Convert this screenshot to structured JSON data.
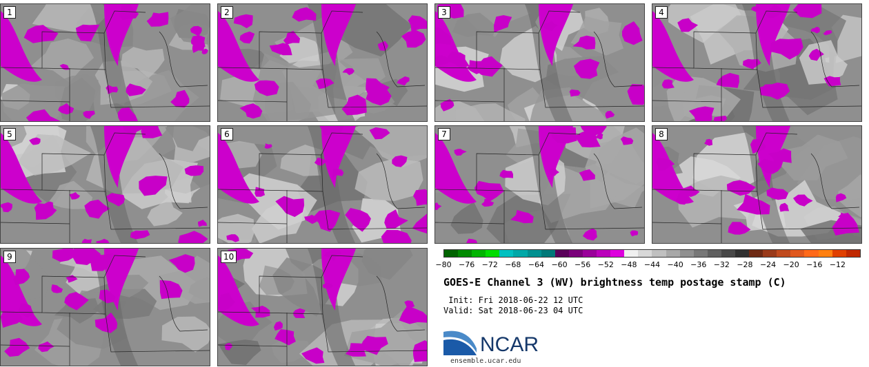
{
  "panels": [
    {
      "label": "1"
    },
    {
      "label": "2"
    },
    {
      "label": "3"
    },
    {
      "label": "4"
    },
    {
      "label": "5"
    },
    {
      "label": "6"
    },
    {
      "label": "7"
    },
    {
      "label": "8"
    },
    {
      "label": "9"
    },
    {
      "label": "10"
    }
  ],
  "colorbar": {
    "colors": [
      "#006400",
      "#008a00",
      "#00b400",
      "#00dc00",
      "#00c0c0",
      "#00a8a8",
      "#009090",
      "#007878",
      "#5a005a",
      "#7a007a",
      "#9a009a",
      "#bb00bb",
      "#dd00dd",
      "#f0f0f0",
      "#d8d8d8",
      "#c0c0c0",
      "#a8a8a8",
      "#909090",
      "#787878",
      "#606060",
      "#484848",
      "#303030",
      "#6e2a14",
      "#9a3a1a",
      "#c04a1e",
      "#e0581e",
      "#ff6a1a",
      "#ff8010",
      "#e04000",
      "#c02800"
    ],
    "ticks": [
      "−80",
      "−76",
      "−72",
      "−68",
      "−64",
      "−60",
      "−56",
      "−52",
      "−48",
      "−44",
      "−40",
      "−36",
      "−32",
      "−28",
      "−24",
      "−20",
      "−16",
      "−12"
    ]
  },
  "title": "GOES-E Channel 3 (WV) brightness temp postage stamp (C)",
  "init_line": " Init: Fri 2018-06-22 12 UTC",
  "valid_line": "Valid: Sat 2018-06-23 04 UTC",
  "logo": {
    "name": "NCAR",
    "url": "ensemble.ucar.edu"
  }
}
